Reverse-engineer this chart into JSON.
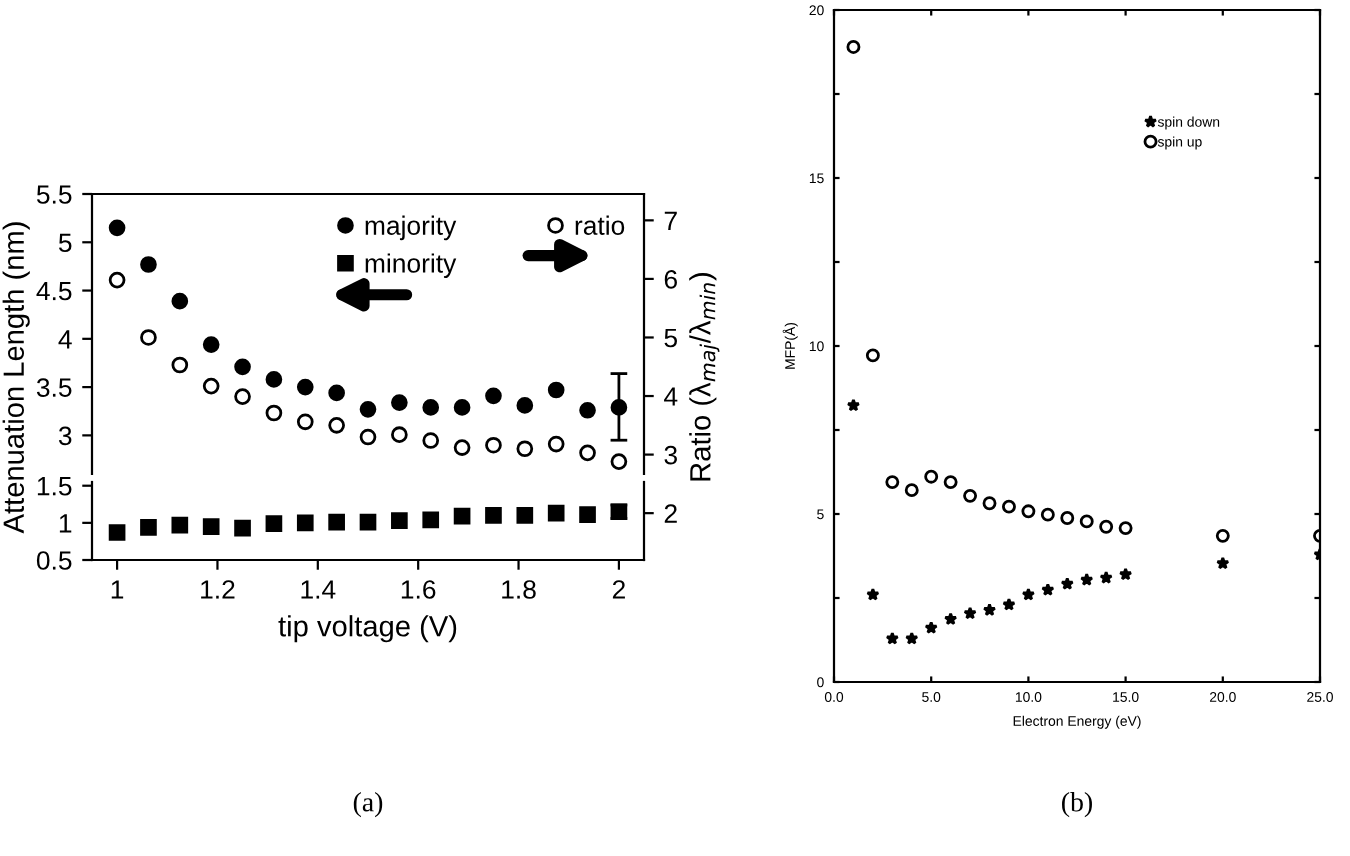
{
  "chart_data": [
    {
      "type": "scatter",
      "ylabel": "Attenuation Length (nm)",
      "y2label": "Ratio (λ$_{maj}$/λ$_{min}$)",
      "xlim": [
        0.95,
        2.05
      ],
      "xticks": [
        1,
        1.2,
        1.4,
        1.6,
        1.8,
        2
      ],
      "ylim": [
        2.6,
        5.5
      ],
      "yticks": [
        3,
        3.5,
        4,
        4.5,
        5,
        5.5
      ],
      "y2lim": [
        1.2,
        7.45
      ],
      "y2ticks": [
        2,
        3,
        4,
        5,
        6,
        7
      ],
      "tick_labels": "y",
      "legend": "top",
      "grid": false,
      "x": [
        1.0,
        1.0625,
        1.125,
        1.1875,
        1.25,
        1.3125,
        1.375,
        1.4375,
        1.5,
        1.5625,
        1.625,
        1.6875,
        1.75,
        1.8125,
        1.875,
        1.9375,
        2.0
      ],
      "series": [
        {
          "name": "majority",
          "color": "#000000",
          "marker": "circle",
          "values": [
            5.15,
            4.77,
            4.39,
            3.94,
            3.71,
            3.58,
            3.5,
            3.44,
            3.27,
            3.34,
            3.29,
            3.29,
            3.41,
            3.31,
            3.47,
            3.26,
            3.29
          ],
          "errors": [
            null,
            null,
            null,
            null,
            null,
            null,
            null,
            null,
            null,
            null,
            null,
            null,
            null,
            null,
            null,
            null,
            [
              2.95,
              3.64
            ]
          ]
        },
        {
          "name": "ratio",
          "color": "#000000",
          "marker": "circle",
          "axis": "y2",
          "values": [
            5.98,
            5.0,
            4.53,
            4.17,
            3.99,
            3.71,
            3.56,
            3.5,
            3.3,
            3.34,
            3.24,
            3.12,
            3.16,
            3.1,
            3.18,
            3.03,
            2.88
          ]
        }
      ]
    },
    {
      "type": "scatter",
      "xlabel": "tip voltage (V)",
      "xlim": [
        0.95,
        2.05
      ],
      "xticks": [
        1,
        1.2,
        1.4,
        1.6,
        1.8,
        2
      ],
      "ylim": [
        0.5,
        1.55
      ],
      "yticks": [
        0.5,
        1,
        1.5
      ],
      "grid": false,
      "annotations": [
        "(a)"
      ],
      "x": [
        1.0,
        1.0625,
        1.125,
        1.1875,
        1.25,
        1.3125,
        1.375,
        1.4375,
        1.5,
        1.5625,
        1.625,
        1.6875,
        1.75,
        1.8125,
        1.875,
        1.9375,
        2.0
      ],
      "series": [
        {
          "name": "minority",
          "color": "#000000",
          "marker": "square",
          "values": [
            0.87,
            0.94,
            0.97,
            0.95,
            0.93,
            0.99,
            1.0,
            1.01,
            1.01,
            1.03,
            1.04,
            1.09,
            1.1,
            1.1,
            1.13,
            1.11,
            1.15
          ],
          "errors": [
            null,
            null,
            null,
            null,
            null,
            null,
            null,
            null,
            null,
            null,
            null,
            null,
            null,
            null,
            null,
            null,
            [
              1.06,
              1.24
            ]
          ]
        }
      ]
    },
    {
      "type": "scatter",
      "xlabel": "Electron Energy (eV)",
      "ylabel": "MFP(Å)",
      "xlim": [
        0,
        25
      ],
      "xticks": [
        {
          "value": 0,
          "label": "0.0"
        },
        {
          "value": 5,
          "label": "5.0"
        },
        {
          "value": 10,
          "label": "10.0"
        },
        {
          "value": 15,
          "label": "15.0"
        },
        {
          "value": 20,
          "label": "20.0"
        },
        {
          "value": 25,
          "label": "25.0"
        }
      ],
      "ylim": [
        0,
        20
      ],
      "yticks": [
        0,
        {
          "value": 2.5,
          "label": null
        },
        5,
        {
          "value": 7.5,
          "label": null
        },
        10,
        {
          "value": 12.5,
          "label": null
        },
        15,
        {
          "value": 17.5,
          "label": null
        },
        20
      ],
      "legend": "top right",
      "grid": false,
      "annotations": [
        "(b)"
      ],
      "x": [
        1,
        2,
        3,
        4,
        5,
        6,
        7,
        8,
        9,
        10,
        11,
        12,
        13,
        14,
        15,
        20,
        25
      ],
      "series": [
        {
          "name": "spin down",
          "color": "#000000",
          "marker": "star",
          "values": [
            8.23,
            2.6,
            1.29,
            1.29,
            1.61,
            1.87,
            2.04,
            2.14,
            2.3,
            2.6,
            2.74,
            2.92,
            3.04,
            3.1,
            3.2,
            3.53,
            3.79
          ]
        },
        {
          "name": "spin up",
          "color": "#000000",
          "marker": "circle",
          "values": [
            18.9,
            9.72,
            5.95,
            5.71,
            6.11,
            5.95,
            5.54,
            5.32,
            5.22,
            5.08,
            4.98,
            4.88,
            4.78,
            4.62,
            4.58,
            4.35,
            4.35
          ]
        }
      ]
    }
  ]
}
